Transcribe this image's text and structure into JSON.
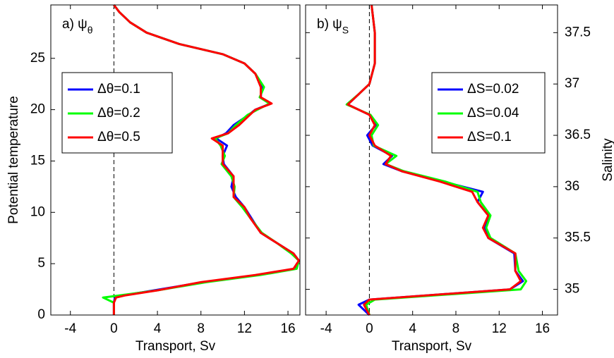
{
  "chart_data": [
    {
      "type": "line",
      "title": "a) ψ",
      "title_sub": "θ",
      "xlabel": "Transport, Sv",
      "ylabel": "Potential temperature",
      "xlim": [
        -5.8,
        17.1
      ],
      "xticks": [
        -4,
        0,
        4,
        8,
        12,
        16
      ],
      "ylim": [
        0,
        30.2
      ],
      "yticks": [
        0,
        5,
        10,
        15,
        20,
        25
      ],
      "yaxis_side": "left",
      "zero_line": 0,
      "legend": "upper left",
      "y": [
        0,
        1.2,
        1.7,
        1.9,
        2.4,
        3.2,
        3.9,
        4.5,
        5.3,
        6,
        7,
        8,
        9.5,
        10.5,
        11.5,
        12.5,
        13.5,
        14.7,
        15.5,
        16.5,
        17.2,
        17.7,
        18.5,
        19.5,
        20,
        20.6,
        21.2,
        22.2,
        23.5,
        24.5,
        25.4,
        26.4,
        27.5,
        28.5,
        29.5,
        30.2
      ],
      "series": [
        {
          "name": "Δθ=0.1",
          "color": "#0000ff",
          "values": [
            0,
            0,
            0.1,
            0.8,
            3.7,
            8.2,
            13.2,
            16.6,
            17,
            16.5,
            15,
            13.5,
            12.6,
            12,
            11.2,
            10.8,
            11,
            10.1,
            10,
            10.4,
            9.4,
            10.3,
            11,
            12.4,
            13,
            14.4,
            13.5,
            13.6,
            13,
            12,
            10,
            6,
            3,
            1.5,
            0.5,
            0
          ]
        },
        {
          "name": "Δθ=0.2",
          "color": "#00ff00",
          "values": [
            0,
            0,
            -1,
            0.5,
            4,
            8.5,
            13.5,
            16.8,
            17,
            16.3,
            15,
            13.6,
            12.5,
            11.8,
            11,
            11.1,
            10.8,
            9.9,
            10.2,
            9.8,
            9.3,
            10.5,
            11.2,
            12.3,
            13.2,
            14.3,
            13.4,
            13.8,
            13,
            12,
            10,
            6,
            3,
            1.5,
            0.5,
            0
          ]
        },
        {
          "name": "Δθ=0.5",
          "color": "#ff0000",
          "values": [
            0,
            0,
            0.2,
            1,
            4,
            8,
            13,
            16.5,
            17,
            16.5,
            15,
            13.5,
            12.5,
            12,
            11,
            11,
            11,
            10,
            10,
            10,
            9,
            10.5,
            11.5,
            12.5,
            13,
            14.5,
            13.5,
            13.5,
            13,
            12,
            10,
            6,
            3,
            1.5,
            0.5,
            0
          ]
        }
      ]
    },
    {
      "type": "line",
      "title": "b) ψ",
      "title_sub": "S",
      "xlabel": "Transport, Sv",
      "ylabel": "Salinity",
      "xlim": [
        -5.9,
        17.4
      ],
      "xticks": [
        -4,
        0,
        4,
        8,
        12,
        16
      ],
      "ylim": [
        34.75,
        37.77
      ],
      "yticks": [
        35,
        35.5,
        36,
        36.5,
        37,
        37.5
      ],
      "yaxis_side": "right",
      "zero_line": 0,
      "legend": "upper right",
      "y": [
        34.75,
        34.85,
        34.9,
        35.0,
        35.08,
        35.18,
        35.35,
        35.5,
        35.6,
        35.72,
        35.85,
        35.95,
        36.05,
        36.15,
        36.22,
        36.3,
        36.4,
        36.5,
        36.6,
        36.7,
        36.8,
        36.9,
        37.0,
        37.2,
        37.5,
        37.77
      ],
      "series": [
        {
          "name": "ΔS=0.02",
          "color": "#0000ff",
          "values": [
            0,
            -1,
            0,
            13,
            14.2,
            13.5,
            13.4,
            11,
            10.7,
            11,
            10,
            10.5,
            6.8,
            3,
            1.3,
            2.1,
            0.3,
            -0.2,
            0.6,
            0,
            -2,
            -1,
            0,
            0.5,
            0.5,
            0.2
          ]
        },
        {
          "name": "ΔS=0.04",
          "color": "#00ff00",
          "values": [
            0,
            -0.3,
            0.5,
            14,
            14.5,
            13.8,
            13.5,
            11.2,
            10.8,
            11.2,
            10.3,
            10,
            7,
            3.2,
            1.5,
            2.5,
            0.4,
            0.2,
            0.8,
            0.1,
            -2.1,
            -1,
            0,
            0.5,
            0.5,
            0.2
          ]
        },
        {
          "name": "ΔS=0.1",
          "color": "#ff0000",
          "values": [
            0,
            -0.5,
            0,
            13,
            14,
            13.5,
            13.5,
            11,
            10.5,
            11,
            10,
            9.5,
            6.5,
            3,
            1.5,
            2,
            0.5,
            0,
            0.5,
            0,
            -2,
            -1,
            0,
            0.5,
            0.5,
            0.2
          ]
        }
      ]
    }
  ]
}
